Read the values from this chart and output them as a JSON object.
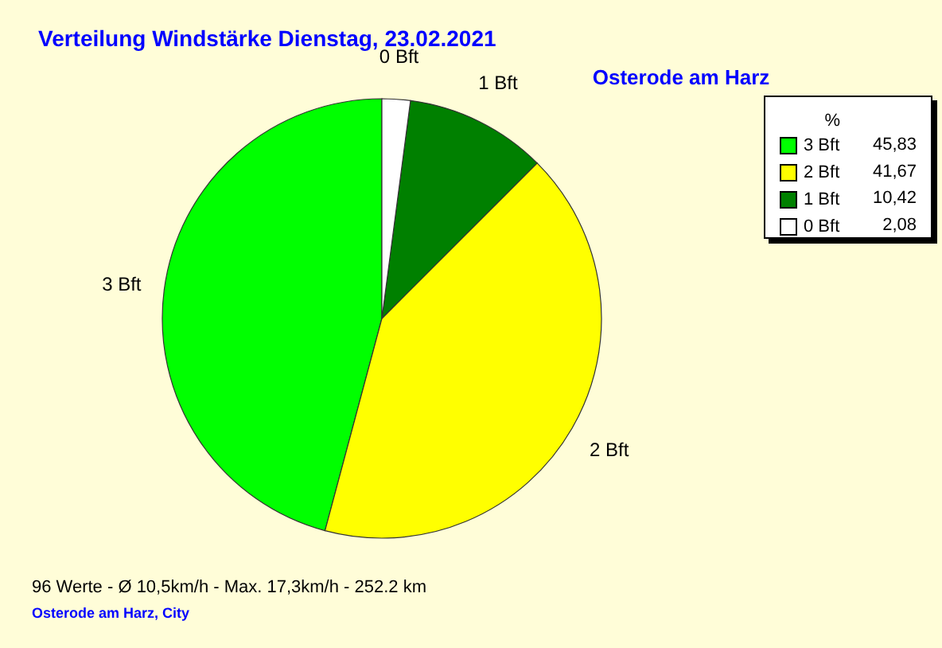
{
  "chart_data": {
    "type": "pie",
    "title": "Verteilung Windstärke  Dienstag, 23.02.2021",
    "subtitle": "Osterode am Harz",
    "legend_title": "%",
    "categories": [
      "3 Bft",
      "2 Bft",
      "1 Bft",
      "0 Bft"
    ],
    "values": [
      45.83,
      41.67,
      10.42,
      2.08
    ],
    "value_labels": [
      "45,83",
      "41,67",
      "10,42",
      "2,08"
    ],
    "colors": [
      "#00ff00",
      "#ffff00",
      "#008000",
      "#ffffff"
    ],
    "legend": "top right",
    "annotations": [
      "96 Werte   -   Ø 10,5km/h  -  Max. 17,3km/h   -   252.2 km",
      "Osterode am Harz, City"
    ]
  }
}
